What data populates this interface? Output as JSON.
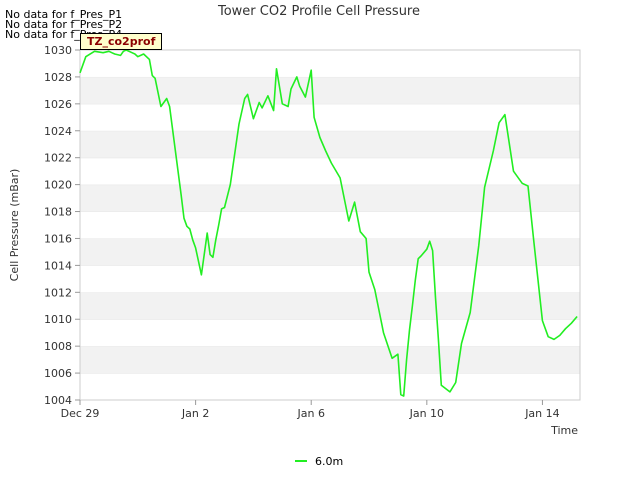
{
  "no_data_messages": [
    "No data for f_Pres_P1",
    "No data for f_Pres_P2",
    "No data for f_Pres_P4"
  ],
  "badge_label": "TZ_co2prof",
  "chart_data": {
    "type": "line",
    "title": "Tower CO2 Profile Cell Pressure",
    "xlabel": "Time",
    "ylabel": "Cell Pressure (mBar)",
    "xlim": [
      0,
      17.3
    ],
    "ylim": [
      1004,
      1030
    ],
    "x_tick_values": [
      0,
      4,
      8,
      12,
      16
    ],
    "x_tick_labels": [
      "Dec 29",
      "Jan 2",
      "Jan 6",
      "Jan 10",
      "Jan 14"
    ],
    "y_ticks": [
      1004,
      1006,
      1008,
      1010,
      1012,
      1014,
      1016,
      1018,
      1020,
      1022,
      1024,
      1026,
      1028,
      1030
    ],
    "grid_bands": true,
    "series": [
      {
        "name": "6.0m",
        "color": "#22ee22",
        "x": [
          0.0,
          0.2,
          0.5,
          0.8,
          1.0,
          1.1,
          1.2,
          1.4,
          1.5,
          1.6,
          1.8,
          1.9,
          2.0,
          2.2,
          2.4,
          2.5,
          2.6,
          2.8,
          3.0,
          3.1,
          3.3,
          3.5,
          3.6,
          3.7,
          3.8,
          3.9,
          4.0,
          4.2,
          4.4,
          4.5,
          4.6,
          4.7,
          4.8,
          4.9,
          5.0,
          5.2,
          5.3,
          5.5,
          5.7,
          5.8,
          6.0,
          6.2,
          6.3,
          6.5,
          6.7,
          6.8,
          7.0,
          7.2,
          7.3,
          7.5,
          7.6,
          7.8,
          8.0,
          8.1,
          8.3,
          8.5,
          8.7,
          9.0,
          9.3,
          9.5,
          9.7,
          9.9,
          10.0,
          10.2,
          10.5,
          10.8,
          11.0,
          11.1,
          11.2,
          11.3,
          11.4,
          11.5,
          11.6,
          11.7,
          11.8,
          12.0,
          12.1,
          12.2,
          12.3,
          12.4,
          12.5,
          12.8,
          13.0,
          13.2,
          13.5,
          13.8,
          14.0,
          14.3,
          14.5,
          14.7,
          15.0,
          15.3,
          15.5,
          15.7,
          16.0,
          16.2,
          16.4,
          16.6,
          16.8,
          17.0,
          17.2
        ],
        "values": [
          1028.3,
          1029.5,
          1029.9,
          1029.8,
          1029.9,
          1029.8,
          1029.7,
          1029.6,
          1029.9,
          1030.0,
          1029.8,
          1029.7,
          1029.5,
          1029.7,
          1029.3,
          1028.1,
          1027.9,
          1025.8,
          1026.4,
          1025.8,
          1022.5,
          1019.2,
          1017.5,
          1016.9,
          1016.7,
          1015.9,
          1015.3,
          1013.3,
          1016.4,
          1014.8,
          1014.6,
          1015.9,
          1017.0,
          1018.2,
          1018.3,
          1020.0,
          1021.5,
          1024.5,
          1026.4,
          1026.7,
          1024.9,
          1026.1,
          1025.7,
          1026.6,
          1025.5,
          1028.6,
          1026.0,
          1025.8,
          1027.1,
          1028.0,
          1027.3,
          1026.5,
          1028.5,
          1025.0,
          1023.5,
          1022.5,
          1021.6,
          1020.5,
          1017.3,
          1018.7,
          1016.5,
          1016.0,
          1013.5,
          1012.2,
          1009.0,
          1007.1,
          1007.4,
          1004.4,
          1004.3,
          1007.0,
          1009.2,
          1011.0,
          1012.9,
          1014.5,
          1014.7,
          1015.2,
          1015.8,
          1015.1,
          1011.6,
          1008.5,
          1005.1,
          1004.6,
          1005.3,
          1008.2,
          1010.5,
          1015.5,
          1019.8,
          1022.5,
          1024.6,
          1025.2,
          1021.0,
          1020.1,
          1019.9,
          1015.8,
          1009.9,
          1008.7,
          1008.5,
          1008.8,
          1009.3,
          1009.7,
          1010.2
        ]
      }
    ]
  }
}
